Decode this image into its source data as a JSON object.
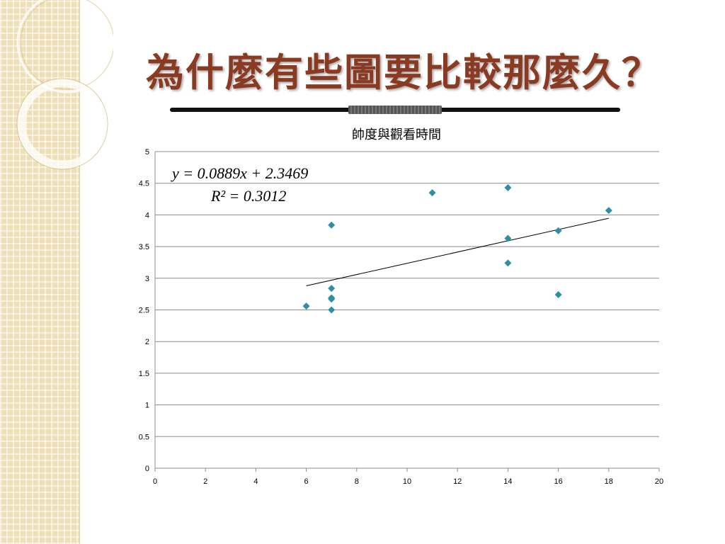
{
  "slide": {
    "title": "為什麼有些圖要比較那麼久？"
  },
  "chart_data": {
    "type": "scatter",
    "title": "帥度與觀看時間",
    "xlabel": "",
    "ylabel": "",
    "xlim": [
      0,
      20
    ],
    "ylim": [
      0,
      5
    ],
    "x_ticks": [
      0,
      2,
      4,
      6,
      8,
      10,
      12,
      14,
      16,
      18,
      20
    ],
    "y_ticks": [
      0,
      0.5,
      1,
      1.5,
      2,
      2.5,
      3,
      3.5,
      4,
      4.5,
      5
    ],
    "grid": "horizontal",
    "series": [
      {
        "color": "#2e8fa4",
        "marker": "diamond",
        "points": [
          {
            "x": 6,
            "y": 2.56
          },
          {
            "x": 7,
            "y": 3.84
          },
          {
            "x": 7,
            "y": 2.84
          },
          {
            "x": 7,
            "y": 2.69
          },
          {
            "x": 7,
            "y": 2.67
          },
          {
            "x": 7,
            "y": 2.5
          },
          {
            "x": 11,
            "y": 4.35
          },
          {
            "x": 14,
            "y": 4.43
          },
          {
            "x": 14,
            "y": 3.63
          },
          {
            "x": 14,
            "y": 3.24
          },
          {
            "x": 16,
            "y": 3.75
          },
          {
            "x": 16,
            "y": 2.74
          },
          {
            "x": 18,
            "y": 4.07
          }
        ]
      }
    ],
    "trendline": {
      "type": "linear",
      "slope": 0.0889,
      "intercept": 2.3469,
      "x_range": [
        6,
        18
      ],
      "color": "#000000"
    },
    "annotations": {
      "equation": "y = 0.0889x + 2.3469",
      "r_squared": "R² = 0.3012"
    }
  }
}
